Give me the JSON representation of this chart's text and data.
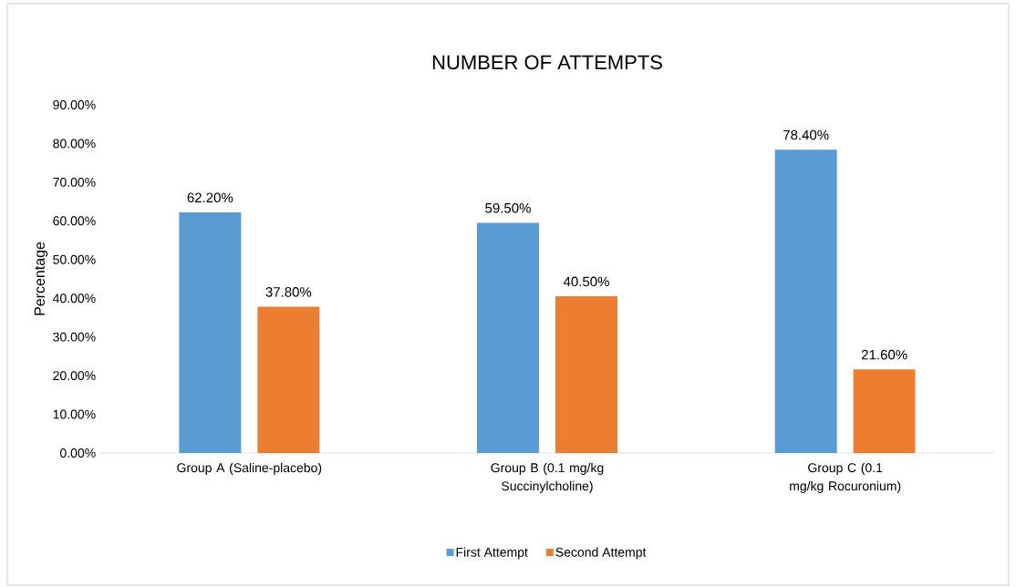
{
  "chart_data": {
    "type": "bar",
    "title": "NUMBER OF ATTEMPTS",
    "ylabel": "Percentage",
    "categories": [
      "Group A (Saline-placebo)",
      "Group B (0.1 mg/kg Succinylcholine)",
      "Group C (0.1 mg/kg Rocuronium)"
    ],
    "series": [
      {
        "name": "First Attempt",
        "color": "#5b9bd5",
        "values": [
          62.2,
          59.5,
          78.4
        ],
        "value_labels": [
          "62.20%",
          "59.50%",
          "78.40%"
        ]
      },
      {
        "name": "Second Attempt",
        "color": "#ed7d31",
        "values": [
          37.8,
          40.5,
          21.6
        ],
        "value_labels": [
          "37.80%",
          "40.50%",
          "21.60%"
        ]
      }
    ],
    "ylim": [
      0,
      90
    ],
    "yticks": [
      {
        "value": 0,
        "label": "0.00%"
      },
      {
        "value": 10,
        "label": "10.00%"
      },
      {
        "value": 20,
        "label": "20.00%"
      },
      {
        "value": 30,
        "label": "30.00%"
      },
      {
        "value": 40,
        "label": "40.00%"
      },
      {
        "value": 50,
        "label": "50.00%"
      },
      {
        "value": 60,
        "label": "60.00%"
      },
      {
        "value": 70,
        "label": "70.00%"
      },
      {
        "value": 80,
        "label": "80.00%"
      },
      {
        "value": 90,
        "label": "90.00%"
      }
    ],
    "legend": "bottom"
  }
}
